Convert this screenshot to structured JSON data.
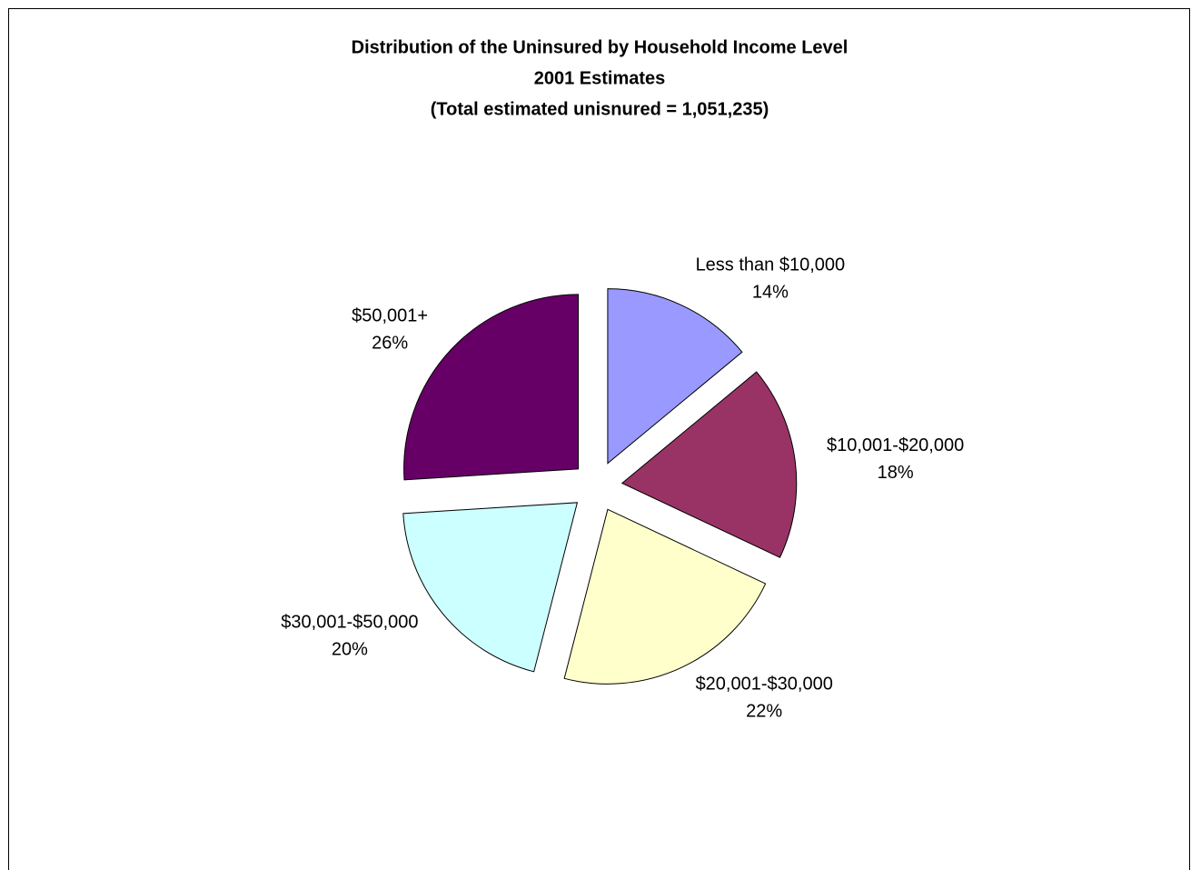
{
  "chart_data": {
    "type": "pie",
    "title": [
      "Distribution of the Uninsured by Household Income Level",
      "2001 Estimates",
      "(Total estimated unisnured = 1,051,235)"
    ],
    "categories": [
      "Less than $10,000",
      "$10,001-$20,000",
      "$20,001-$30,000",
      "$30,001-$50,000",
      "$50,001+"
    ],
    "values": [
      14,
      18,
      22,
      20,
      26
    ],
    "value_labels": [
      "14%",
      "18%",
      "22%",
      "20%",
      "26%"
    ],
    "colors": [
      "#9999ff",
      "#993366",
      "#ffffcc",
      "#ccffff",
      "#660066"
    ],
    "exploded": true
  }
}
